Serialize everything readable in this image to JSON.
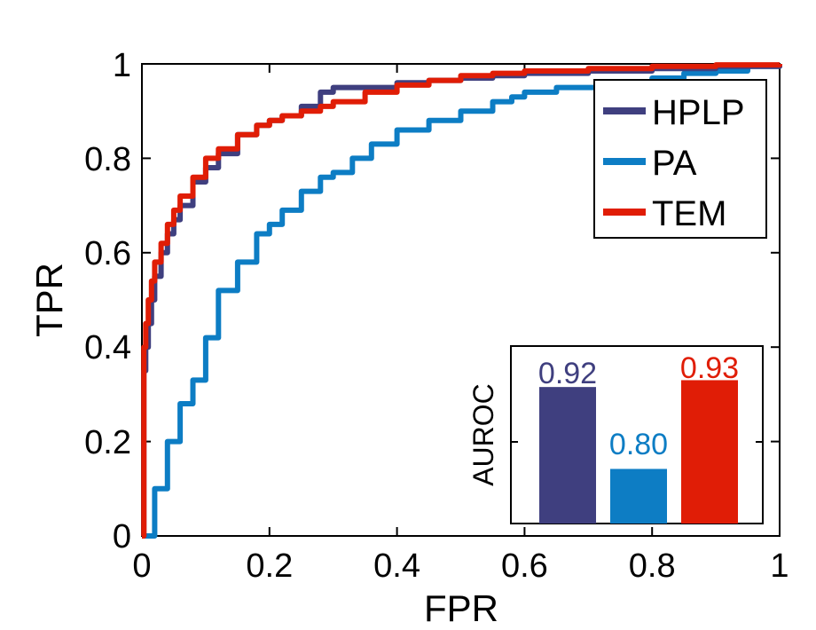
{
  "chart_data": {
    "type": "line",
    "title": "",
    "xlabel": "FPR",
    "ylabel": "TPR",
    "xlim": [
      0,
      1
    ],
    "ylim": [
      0,
      1
    ],
    "xticks": [
      "0",
      "0.2",
      "0.4",
      "0.6",
      "0.8",
      "1"
    ],
    "yticks": [
      "0",
      "0.2",
      "0.4",
      "0.6",
      "0.8",
      "1"
    ],
    "legend_position": "top-right",
    "series": [
      {
        "name": "HPLP",
        "color": "#3f3f7f",
        "x": [
          0,
          0.003,
          0.006,
          0.01,
          0.015,
          0.02,
          0.03,
          0.04,
          0.05,
          0.06,
          0.08,
          0.1,
          0.12,
          0.15,
          0.18,
          0.2,
          0.22,
          0.25,
          0.28,
          0.3,
          0.35,
          0.4,
          0.45,
          0.5,
          0.55,
          0.6,
          0.7,
          0.8,
          0.9,
          1.0
        ],
        "y": [
          0,
          0.35,
          0.4,
          0.45,
          0.5,
          0.55,
          0.6,
          0.64,
          0.67,
          0.7,
          0.75,
          0.78,
          0.81,
          0.85,
          0.87,
          0.88,
          0.89,
          0.91,
          0.94,
          0.95,
          0.95,
          0.96,
          0.965,
          0.97,
          0.975,
          0.98,
          0.985,
          0.99,
          0.995,
          1.0
        ]
      },
      {
        "name": "PA",
        "color": "#0d7dc4",
        "x": [
          0,
          0.02,
          0.04,
          0.06,
          0.08,
          0.1,
          0.12,
          0.15,
          0.18,
          0.2,
          0.22,
          0.25,
          0.28,
          0.3,
          0.33,
          0.36,
          0.4,
          0.45,
          0.5,
          0.55,
          0.58,
          0.6,
          0.65,
          0.7,
          0.75,
          0.8,
          0.85,
          0.9,
          0.95,
          1.0
        ],
        "y": [
          0,
          0.1,
          0.2,
          0.28,
          0.33,
          0.42,
          0.52,
          0.58,
          0.64,
          0.66,
          0.69,
          0.73,
          0.76,
          0.77,
          0.8,
          0.83,
          0.86,
          0.88,
          0.9,
          0.92,
          0.93,
          0.94,
          0.95,
          0.95,
          0.96,
          0.97,
          0.98,
          0.985,
          0.995,
          1.0
        ]
      },
      {
        "name": "TEM",
        "color": "#e01d06",
        "x": [
          0,
          0.003,
          0.006,
          0.01,
          0.015,
          0.02,
          0.03,
          0.04,
          0.05,
          0.06,
          0.08,
          0.1,
          0.12,
          0.15,
          0.18,
          0.2,
          0.22,
          0.25,
          0.28,
          0.3,
          0.35,
          0.4,
          0.45,
          0.5,
          0.55,
          0.6,
          0.7,
          0.8,
          0.9,
          1.0
        ],
        "y": [
          0,
          0.4,
          0.45,
          0.5,
          0.54,
          0.58,
          0.62,
          0.66,
          0.69,
          0.72,
          0.76,
          0.8,
          0.82,
          0.85,
          0.87,
          0.88,
          0.89,
          0.9,
          0.91,
          0.92,
          0.94,
          0.955,
          0.965,
          0.975,
          0.98,
          0.985,
          0.99,
          0.995,
          0.998,
          1.0
        ]
      }
    ],
    "inset": {
      "type": "bar",
      "ylabel": "AUROC",
      "categories": [
        "HPLP",
        "PA",
        "TEM"
      ],
      "values": [
        0.92,
        0.8,
        0.93
      ],
      "value_labels": [
        "0.92",
        "0.80",
        "0.93"
      ],
      "colors": [
        "#3f3f7f",
        "#0d7dc4",
        "#e01d06"
      ],
      "ylim": [
        0.72,
        0.98
      ],
      "position": "bottom-right"
    }
  }
}
